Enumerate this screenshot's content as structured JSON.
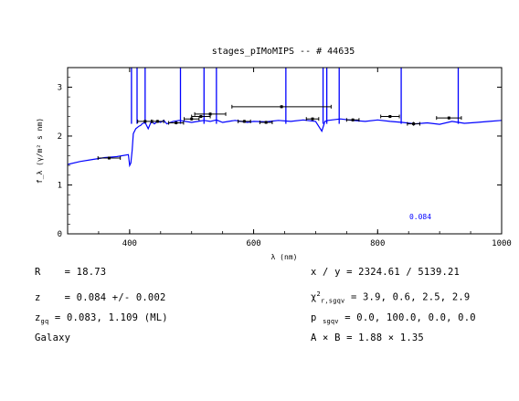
{
  "chart_data": {
    "type": "line",
    "title": "stages_pIMoMIPS -- # 44635",
    "xlabel": "λ (nm)",
    "ylabel": "f_λ (γ/m² s nm)",
    "xlim": [
      300,
      1000
    ],
    "ylim": [
      0,
      3.4
    ],
    "x_ticks": [
      400,
      600,
      800,
      1000
    ],
    "y_ticks": [
      0,
      1,
      2,
      3
    ],
    "annotation": "0.084",
    "annotation_color": "#0000ff",
    "spectrum_color": "#0000ff",
    "series": [
      {
        "type": "line",
        "x": [
          300,
          320,
          340,
          360,
          380,
          398,
          400,
          402,
          404,
          406,
          410,
          415,
          418,
          420,
          425,
          430,
          435,
          440,
          445,
          450,
          455,
          460,
          470,
          480,
          490,
          500,
          510,
          520,
          530,
          540,
          550,
          560,
          570,
          580,
          590,
          600,
          620,
          640,
          660,
          680,
          700,
          710,
          715,
          720,
          740,
          760,
          780,
          800,
          820,
          840,
          860,
          880,
          900,
          920,
          940,
          960,
          980,
          1000
        ],
        "y": [
          1.42,
          1.48,
          1.52,
          1.56,
          1.58,
          1.62,
          1.4,
          1.45,
          1.7,
          2.05,
          2.15,
          2.2,
          2.22,
          2.25,
          2.28,
          2.15,
          2.3,
          2.25,
          2.3,
          2.28,
          2.32,
          2.25,
          2.3,
          2.32,
          2.3,
          2.28,
          2.3,
          2.32,
          2.3,
          2.33,
          2.28,
          2.3,
          2.32,
          2.3,
          2.28,
          2.3,
          2.29,
          2.32,
          2.3,
          2.33,
          2.3,
          2.1,
          2.3,
          2.32,
          2.35,
          2.32,
          2.3,
          2.33,
          2.3,
          2.28,
          2.25,
          2.27,
          2.24,
          2.3,
          2.26,
          2.28,
          2.3,
          2.32
        ]
      },
      {
        "type": "spikes",
        "x": [
          403,
          412,
          425,
          482,
          520,
          540,
          652,
          712,
          718,
          738,
          838,
          930
        ],
        "y": [
          3.4,
          3.4,
          3.4,
          3.4,
          3.4,
          3.4,
          3.4,
          3.4,
          3.4,
          3.4,
          3.4,
          3.4
        ]
      },
      {
        "type": "errorbar",
        "x": [
          367,
          425,
          445,
          475,
          500,
          515,
          530,
          585,
          620,
          645,
          695,
          760,
          820,
          858,
          915
        ],
        "y": [
          1.55,
          2.3,
          2.3,
          2.27,
          2.35,
          2.4,
          2.45,
          2.3,
          2.28,
          2.6,
          2.35,
          2.33,
          2.4,
          2.25,
          2.37
        ],
        "xerr": [
          18,
          12,
          10,
          12,
          12,
          15,
          25,
          10,
          10,
          80,
          10,
          10,
          15,
          10,
          20
        ],
        "yerr": [
          0.02,
          0.03,
          0.03,
          0.03,
          0.03,
          0.03,
          0.03,
          0.03,
          0.03,
          0.03,
          0.03,
          0.03,
          0.03,
          0.04,
          0.03
        ]
      }
    ]
  },
  "info": {
    "r_label": "R",
    "r_value": "= 18.73",
    "z_label": "z",
    "z_value": "= 0.084 +/- 0.002",
    "zgq_label": "z",
    "zgq_sub": "gq",
    "zgq_value": "= 0.083, 1.109 (ML)",
    "class": "Galaxy",
    "xy_label": "x / y",
    "xy_value": "= 2324.61 / 5139.21",
    "chi_label": "χ",
    "chi_sup": "2",
    "chi_sub": "r,sgqv",
    "chi_value": "= 3.9, 0.6, 2.5, 2.9",
    "p_label": "p",
    "p_sub": "sgqv",
    "p_value": "= 0.0, 100.0, 0.0, 0.0",
    "ab_label": "A × B",
    "ab_value": "= 1.88 × 1.35"
  }
}
